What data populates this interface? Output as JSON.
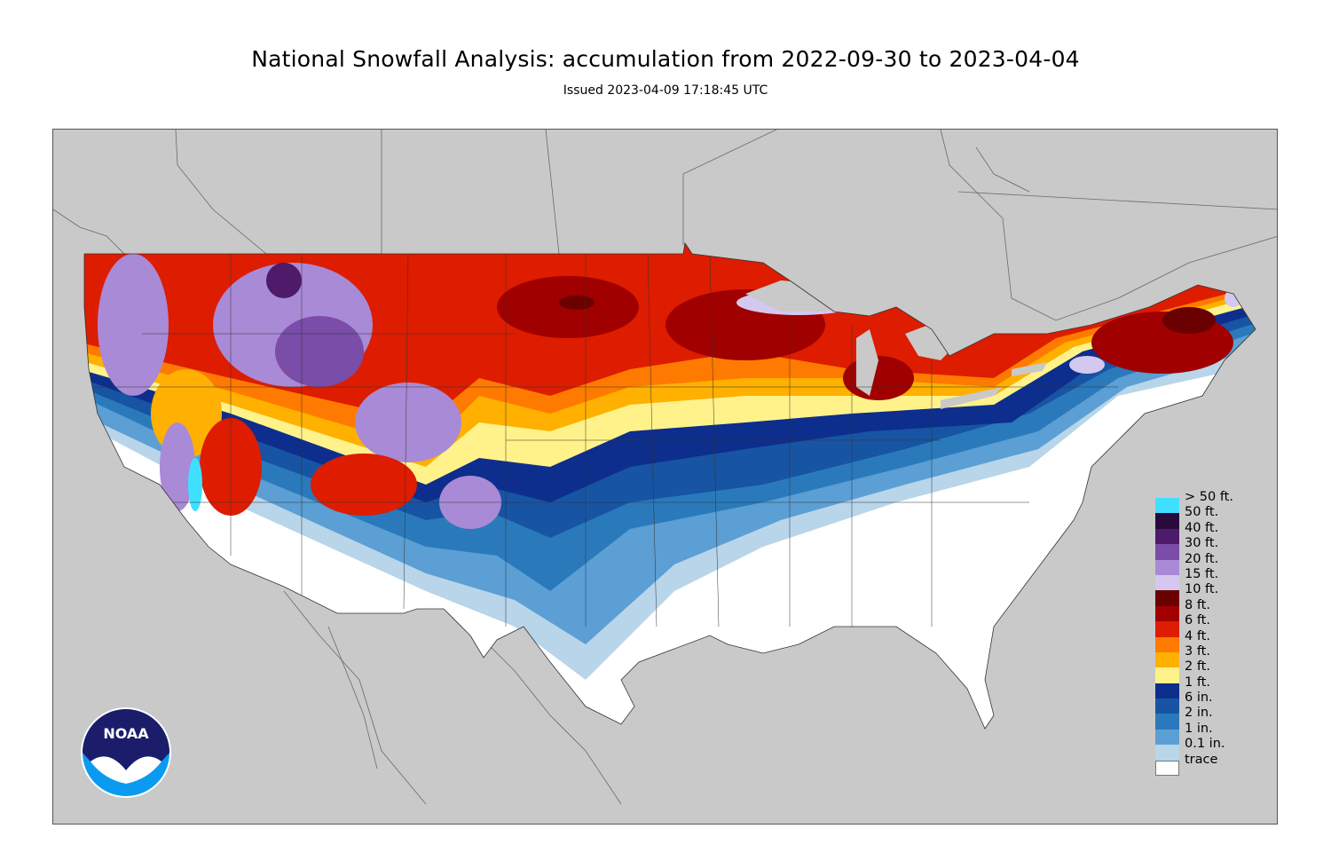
{
  "title": "National Snowfall Analysis: accumulation from 2022-09-30 to 2023-04-04",
  "subtitle": "Issued 2023-04-09 17:18:45 UTC",
  "logo_text": "NOAA",
  "colors": {
    "background_land": "#c9c9c9",
    "border_line": "#555555"
  },
  "legend": [
    {
      "label": "> 50 ft.",
      "color": "#3fe0ff"
    },
    {
      "label": "50 ft.",
      "color": "#2a0a3d"
    },
    {
      "label": "40 ft.",
      "color": "#4e1a6a"
    },
    {
      "label": "30 ft.",
      "color": "#7a4da8"
    },
    {
      "label": "20 ft.",
      "color": "#a98ad6"
    },
    {
      "label": "15 ft.",
      "color": "#d4c8f0"
    },
    {
      "label": "10 ft.",
      "color": "#6b0000"
    },
    {
      "label": "8 ft.",
      "color": "#a00000"
    },
    {
      "label": "6 ft.",
      "color": "#dd1c00"
    },
    {
      "label": "4 ft.",
      "color": "#ff7a00"
    },
    {
      "label": "3 ft.",
      "color": "#ffb000"
    },
    {
      "label": "2 ft.",
      "color": "#fff28a"
    },
    {
      "label": "1 ft.",
      "color": "#0d2e8c"
    },
    {
      "label": "6 in.",
      "color": "#1754a3"
    },
    {
      "label": "2 in.",
      "color": "#2a7abb"
    },
    {
      "label": "1 in.",
      "color": "#5b9fd4"
    },
    {
      "label": "0.1 in.",
      "color": "#b8d5ea"
    },
    {
      "label": "trace",
      "color": "#ffffff"
    }
  ]
}
